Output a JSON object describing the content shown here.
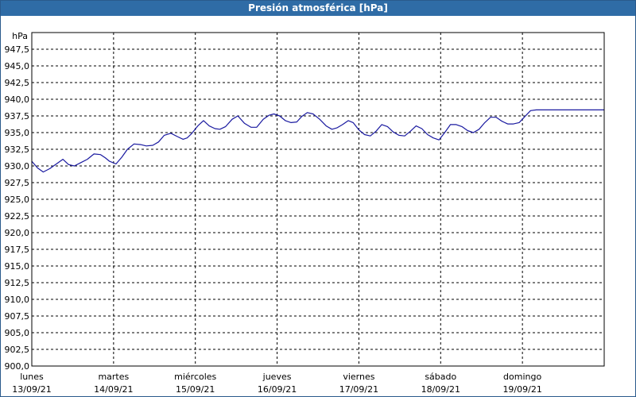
{
  "window": {
    "title": "Presión atmosférica [hPa]"
  },
  "colors": {
    "titlebar": "#2f6ca6",
    "line": "#1a1aa0",
    "grid": "#000000"
  },
  "chart_data": {
    "type": "line",
    "title": "Presión atmosférica [hPa]",
    "ylabel": "hPa",
    "ylim": [
      900.0,
      950.0
    ],
    "yticks": [
      "947,5",
      "945,0",
      "942,5",
      "940,0",
      "937,5",
      "935,0",
      "932,5",
      "930,0",
      "927,5",
      "925,0",
      "922,5",
      "920,0",
      "917,5",
      "915,0",
      "912,5",
      "910,0",
      "907,5",
      "905,0",
      "902,5",
      "900,0"
    ],
    "xlim_days": [
      0,
      7
    ],
    "x_categories": [
      {
        "day": "lunes",
        "date": "13/09/21"
      },
      {
        "day": "martes",
        "date": "14/09/21"
      },
      {
        "day": "miércoles",
        "date": "15/09/21"
      },
      {
        "day": "jueves",
        "date": "16/09/21"
      },
      {
        "day": "viernes",
        "date": "17/09/21"
      },
      {
        "day": "sábado",
        "date": "18/09/21"
      },
      {
        "day": "domingo",
        "date": "19/09/21"
      }
    ],
    "grid": true,
    "series": [
      {
        "name": "",
        "x_days": [
          0.0,
          0.07,
          0.14,
          0.22,
          0.3,
          0.38,
          0.45,
          0.52,
          0.6,
          0.68,
          0.76,
          0.84,
          0.9,
          0.95,
          1.03,
          1.1,
          1.17,
          1.25,
          1.33,
          1.4,
          1.48,
          1.55,
          1.62,
          1.7,
          1.78,
          1.85,
          1.9,
          1.95,
          2.03,
          2.1,
          2.17,
          2.24,
          2.3,
          2.37,
          2.45,
          2.52,
          2.6,
          2.68,
          2.75,
          2.83,
          2.9,
          2.96,
          3.03,
          3.1,
          3.17,
          3.24,
          3.3,
          3.37,
          3.44,
          3.52,
          3.6,
          3.67,
          3.73,
          3.8,
          3.87,
          3.93,
          4.0,
          4.07,
          4.14,
          4.21,
          4.28,
          4.35,
          4.42,
          4.49,
          4.56,
          4.63,
          4.7,
          4.77,
          4.84,
          4.91,
          4.98,
          5.05,
          5.12,
          5.19,
          5.26,
          5.33,
          5.4,
          5.47,
          5.54,
          5.61,
          5.68,
          5.75,
          5.82,
          5.89,
          5.96,
          6.03,
          6.1,
          6.17,
          6.24,
          6.31,
          6.38,
          6.45,
          6.52,
          6.59,
          6.66,
          6.73,
          6.8,
          6.87,
          6.94,
          7.0
        ],
        "values": [
          930.7,
          929.7,
          929.1,
          929.6,
          930.3,
          931.0,
          930.2,
          930.0,
          930.5,
          931.0,
          931.8,
          931.7,
          931.2,
          930.7,
          930.3,
          931.3,
          932.5,
          933.3,
          933.2,
          933.0,
          933.1,
          933.6,
          934.6,
          934.9,
          934.4,
          934.0,
          934.2,
          934.8,
          936.0,
          936.8,
          936.0,
          935.6,
          935.5,
          935.9,
          937.0,
          937.5,
          936.4,
          935.8,
          935.8,
          937.0,
          937.6,
          937.8,
          937.5,
          936.8,
          936.5,
          936.6,
          937.4,
          938.0,
          937.8,
          937.0,
          936.0,
          935.5,
          935.7,
          936.2,
          936.8,
          936.5,
          935.4,
          934.7,
          934.5,
          935.2,
          936.2,
          935.9,
          935.1,
          934.6,
          934.5,
          935.2,
          936.0,
          935.6,
          934.7,
          934.2,
          933.9,
          935.0,
          936.2,
          936.2,
          935.9,
          935.3,
          935.0,
          935.5,
          936.5,
          937.3,
          937.3,
          936.7,
          936.3,
          936.3,
          936.5,
          937.4,
          938.3,
          938.4,
          938.4,
          938.4,
          938.4,
          938.4,
          938.4,
          938.4,
          938.4,
          938.4,
          938.4,
          938.4,
          938.4,
          938.4
        ]
      }
    ]
  }
}
